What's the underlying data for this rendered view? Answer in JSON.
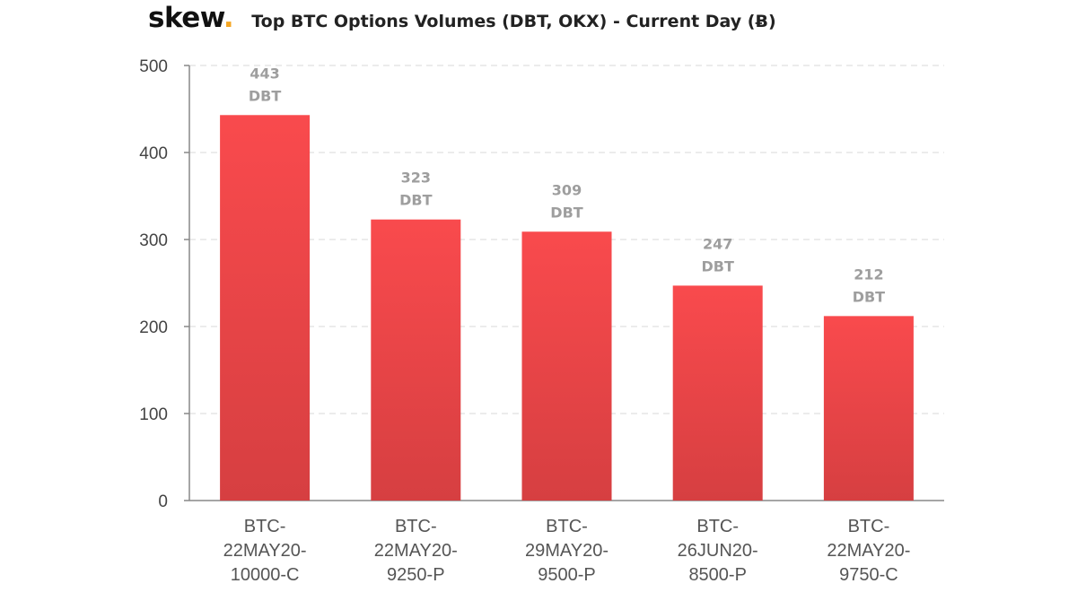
{
  "brand": {
    "logo_text": "skew",
    "logo_dot": "."
  },
  "colors": {
    "bar_top": "#f94a4d",
    "bar_bottom": "#d63f41",
    "brand_dot": "#f5a623",
    "grid": "#e6e6e6",
    "axis": "#888888",
    "label": "#9e9e9e"
  },
  "chart_data": {
    "type": "bar",
    "title": "Top BTC Options Volumes (DBT, OKX) - Current Day (Ƀ)",
    "xlabel": "",
    "ylabel": "",
    "ylim": [
      0,
      500
    ],
    "yticks": [
      0,
      100,
      200,
      300,
      400,
      500
    ],
    "grid": true,
    "categories": [
      "BTC-22MAY20-10000-C",
      "BTC-22MAY20-9250-P",
      "BTC-29MAY20-9500-P",
      "BTC-26JUN20-8500-P",
      "BTC-22MAY20-9750-C"
    ],
    "category_lines": [
      [
        "BTC-",
        "22MAY20-",
        "10000-C"
      ],
      [
        "BTC-",
        "22MAY20-",
        "9250-P"
      ],
      [
        "BTC-",
        "29MAY20-",
        "9500-P"
      ],
      [
        "BTC-",
        "26JUN20-",
        "8500-P"
      ],
      [
        "BTC-",
        "22MAY20-",
        "9750-C"
      ]
    ],
    "series": [
      {
        "values": [
          443,
          323,
          309,
          247,
          212
        ]
      }
    ],
    "data_labels": [
      "443",
      "323",
      "309",
      "247",
      "212"
    ],
    "data_label_unit": "DBT"
  }
}
